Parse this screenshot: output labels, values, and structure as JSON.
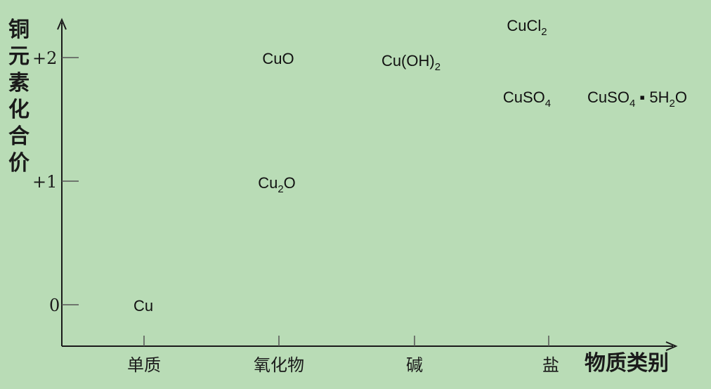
{
  "y_axis_title": "铜元素化合价",
  "x_axis_title": "物质类别",
  "y_ticks": [
    "+2",
    "+1",
    "0"
  ],
  "x_categories": [
    "单质",
    "氧化物",
    "碱",
    "盐"
  ],
  "compounds": [
    {
      "id": "cu",
      "parts": [
        [
          "Cu",
          ""
        ]
      ],
      "category": "单质",
      "valence": 0
    },
    {
      "id": "cuo",
      "parts": [
        [
          "CuO",
          ""
        ]
      ],
      "category": "氧化物",
      "valence": 2
    },
    {
      "id": "cu2o",
      "parts": [
        [
          "Cu",
          ""
        ],
        [
          "2",
          "sub"
        ],
        [
          "O",
          ""
        ]
      ],
      "category": "氧化物",
      "valence": 1
    },
    {
      "id": "cuoh2",
      "parts": [
        [
          "Cu(OH)",
          ""
        ],
        [
          "2",
          "sub"
        ]
      ],
      "category": "碱",
      "valence": 2
    },
    {
      "id": "cucl2",
      "parts": [
        [
          "CuCl",
          ""
        ],
        [
          "2",
          "sub"
        ]
      ],
      "category": "盐",
      "valence": 2
    },
    {
      "id": "cuso4",
      "parts": [
        [
          "CuSO",
          ""
        ],
        [
          "4",
          "sub"
        ]
      ],
      "category": "盐",
      "valence": 2
    },
    {
      "id": "cuso4-5h2o",
      "parts": [
        [
          "CuSO",
          ""
        ],
        [
          "4",
          "sub"
        ],
        [
          " ▪ 5H",
          ""
        ],
        [
          "2",
          "sub"
        ],
        [
          "O",
          ""
        ]
      ],
      "category": "盐",
      "valence": 2
    }
  ],
  "colors": {
    "background": "#b9dcb6",
    "axis": "#1a1a1a",
    "tick": "#555555"
  }
}
